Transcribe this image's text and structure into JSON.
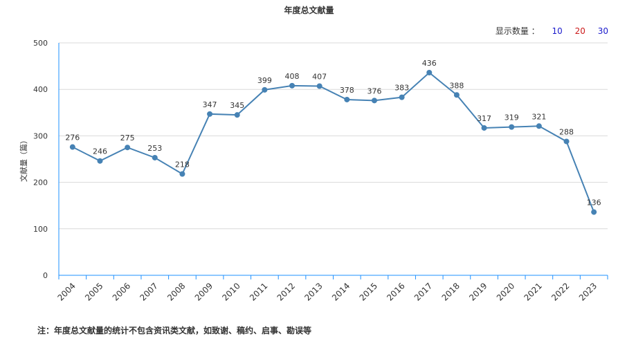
{
  "chart_data": {
    "type": "line",
    "title": "年度总文献量",
    "ylabel": "文献量（篇）",
    "xlabel": "",
    "ylim": [
      0,
      500
    ],
    "yticks": [
      0,
      100,
      200,
      300,
      400,
      500
    ],
    "grid": true,
    "categories": [
      "2004",
      "2005",
      "2006",
      "2007",
      "2008",
      "2009",
      "2010",
      "2011",
      "2012",
      "2013",
      "2014",
      "2015",
      "2016",
      "2017",
      "2018",
      "2019",
      "2020",
      "2021",
      "2022",
      "2023"
    ],
    "values": [
      276,
      246,
      275,
      253,
      218,
      347,
      345,
      399,
      408,
      407,
      378,
      376,
      383,
      436,
      388,
      317,
      319,
      321,
      288,
      136
    ],
    "line_color": "#4682b4"
  },
  "selector": {
    "label": "显示数量 ：",
    "options": [
      "10",
      "20",
      "30"
    ]
  },
  "footnote": "注：年度总文献量的统计不包含资讯类文献，如致谢、稿约、启事、勘误等"
}
